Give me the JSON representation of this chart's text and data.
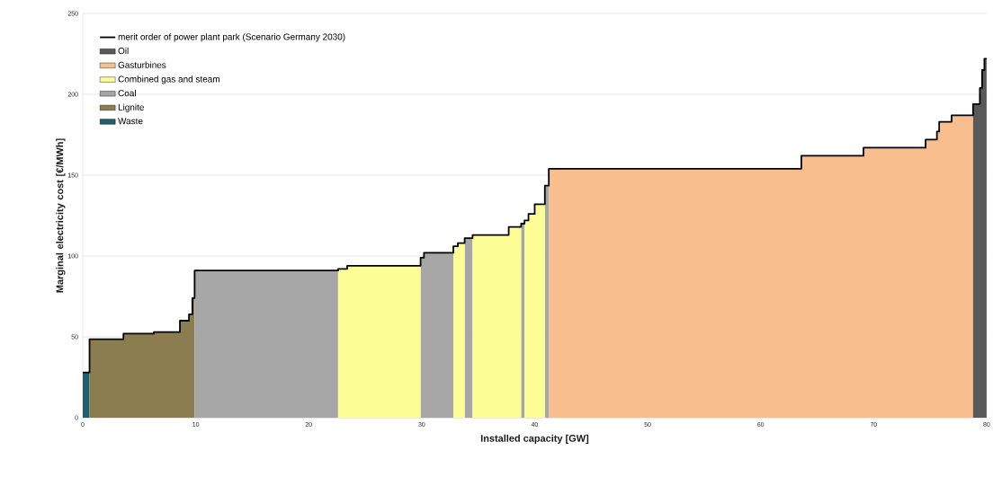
{
  "chart_data": {
    "type": "area",
    "xlabel": "Installed capacity  [GW]",
    "ylabel": "Marginal electricity cost [€/MWh]",
    "xlim": [
      0,
      80
    ],
    "ylim": [
      0,
      250
    ],
    "xticks": [
      0,
      10,
      20,
      30,
      40,
      50,
      60,
      70,
      80
    ],
    "yticks": [
      0,
      50,
      100,
      150,
      200,
      250
    ],
    "grid": "y",
    "legend": "top left",
    "series": [
      {
        "name": "Waste",
        "color": "#1f5f6e",
        "x": [
          0,
          0.6
        ],
        "values": [
          28,
          28
        ]
      },
      {
        "name": "Lignite",
        "color": "#8b7d4f",
        "x": [
          0.6,
          3.6,
          3.6,
          6.3,
          6.3,
          8.6,
          8.6,
          9.4,
          9.4,
          9.7,
          9.7,
          9.9
        ],
        "values": [
          48.5,
          48.5,
          52,
          52,
          53,
          53,
          60,
          60,
          64,
          64,
          74,
          74
        ]
      },
      {
        "name": "Coal",
        "color": "#a6a6a6",
        "x": [
          9.9,
          22.6,
          null,
          29.9,
          30.2,
          30.2,
          32.8,
          null,
          33.8,
          34.5,
          null,
          38.8,
          39.1,
          null,
          40.9,
          41.25
        ],
        "values": [
          91,
          91,
          null,
          99,
          99,
          102,
          102,
          null,
          111,
          111,
          null,
          120,
          120,
          null,
          143.5,
          143.5
        ]
      },
      {
        "name": "Combined gas and steam",
        "color": "#fdfd96",
        "x": [
          22.6,
          23.4,
          23.4,
          29.9,
          null,
          32.8,
          33.2,
          33.2,
          33.8,
          null,
          34.5,
          37.7,
          37.7,
          38.8,
          null,
          39.1,
          39.45,
          39.45,
          40.0,
          40.0,
          40.9
        ],
        "values": [
          92,
          92,
          94,
          94,
          null,
          106,
          106,
          108,
          108,
          null,
          113,
          113,
          118,
          118,
          null,
          122,
          122,
          126,
          126,
          132,
          132
        ]
      },
      {
        "name": "Gasturbines",
        "color": "#f8be8e",
        "x": [
          41.25,
          63.6,
          63.6,
          69.1,
          69.1,
          74.6,
          74.6,
          75.6,
          75.6,
          75.8,
          75.8,
          76.9,
          76.9,
          78.8
        ],
        "values": [
          154,
          154,
          162,
          162,
          167,
          167,
          172,
          172,
          177,
          177,
          183,
          183,
          187,
          187
        ]
      },
      {
        "name": "Oil",
        "color": "#595959",
        "x": [
          78.8,
          79.4,
          79.4,
          79.6,
          79.6,
          79.8,
          79.8,
          80.0
        ],
        "values": [
          194,
          194,
          204,
          204,
          215,
          215,
          222,
          222
        ]
      },
      {
        "name": "merit order of power plant park (Scenario Germany 2030)",
        "type": "step",
        "color": "#000000",
        "x": [
          0,
          0.6,
          3.6,
          6.3,
          8.6,
          9.4,
          9.7,
          9.9,
          22.6,
          23.4,
          29.9,
          30.2,
          32.8,
          33.2,
          33.8,
          34.5,
          37.7,
          38.8,
          39.1,
          39.45,
          40.0,
          40.9,
          41.25,
          63.6,
          69.1,
          74.6,
          75.6,
          75.8,
          76.9,
          78.8,
          79.4,
          79.6,
          79.8,
          80.0
        ],
        "values": [
          28,
          48.5,
          52,
          53,
          60,
          64,
          74,
          91,
          92,
          94,
          99,
          102,
          106,
          108,
          111,
          113,
          118,
          120,
          122,
          126,
          132,
          143.5,
          154,
          162,
          167,
          172,
          177,
          183,
          187,
          194,
          204,
          215,
          222,
          222
        ]
      }
    ]
  }
}
